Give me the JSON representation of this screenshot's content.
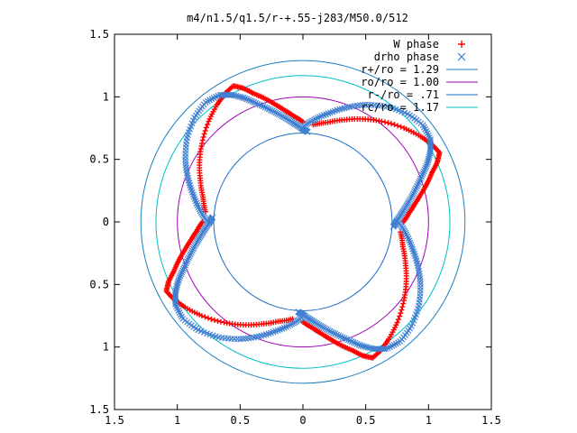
{
  "chart_data": {
    "type": "scatter",
    "title": "m4/n1.5/q1.5/r-+.55-j283/M50.0/512",
    "xlabel": "",
    "ylabel": "",
    "xlim": [
      -1.5,
      1.5
    ],
    "ylim": [
      -1.5,
      1.5
    ],
    "x_ticks": [
      -1.5,
      -1,
      -0.5,
      0,
      0.5,
      1,
      1.5
    ],
    "y_ticks": [
      -1.5,
      -1,
      -0.5,
      0,
      0.5,
      1,
      1.5
    ],
    "x_tick_labels": [
      "1.5",
      "1",
      "0.5",
      "0",
      "0.5",
      "1",
      "1.5"
    ],
    "y_tick_labels": [
      "1.5",
      "1",
      "0.5",
      "0",
      "0.5",
      "1",
      "1.5"
    ],
    "grid": false,
    "legend_position": "top-right",
    "series": [
      {
        "name": "W phase",
        "marker": "plus",
        "color": "#ff0000",
        "arms": 4,
        "rotation_deg": 0,
        "polar_points": [
          [
            0.8,
            0
          ],
          [
            0.85,
            5
          ],
          [
            0.9,
            9
          ],
          [
            0.96,
            13
          ],
          [
            1.03,
            17
          ],
          [
            1.1,
            21
          ],
          [
            1.17,
            24
          ],
          [
            1.22,
            27
          ],
          [
            1.2,
            31
          ],
          [
            1.16,
            36
          ],
          [
            1.1,
            43
          ],
          [
            1.02,
            52
          ],
          [
            0.95,
            60
          ],
          [
            0.88,
            68
          ],
          [
            0.82,
            76
          ],
          [
            0.78,
            84
          ]
        ]
      },
      {
        "name": "drho phase",
        "marker": "cross",
        "color": "#3f7fd0",
        "arms": 4,
        "rotation_deg": 3,
        "polar_points": [
          [
            0.72,
            -6
          ],
          [
            0.75,
            -2
          ],
          [
            0.8,
            3
          ],
          [
            0.86,
            8
          ],
          [
            0.93,
            13
          ],
          [
            1.01,
            18
          ],
          [
            1.09,
            22
          ],
          [
            1.16,
            26
          ],
          [
            1.21,
            30
          ],
          [
            1.23,
            36
          ],
          [
            1.2,
            43
          ],
          [
            1.14,
            51
          ],
          [
            1.06,
            59
          ],
          [
            0.98,
            66
          ],
          [
            0.9,
            73
          ],
          [
            0.83,
            80
          ],
          [
            0.77,
            86
          ]
        ]
      }
    ],
    "circles": [
      {
        "name": "r+/ro = 1.29",
        "radius": 1.29,
        "color": "#1a7ec0"
      },
      {
        "name": "ro/ro = 1.00",
        "radius": 1.0,
        "color": "#a000b8"
      },
      {
        "name": "r-/ro = .71",
        "radius": 0.71,
        "color": "#1a6cc6"
      },
      {
        "name": "rc/ro = 1.17",
        "radius": 1.17,
        "color": "#00c0c8"
      }
    ]
  }
}
